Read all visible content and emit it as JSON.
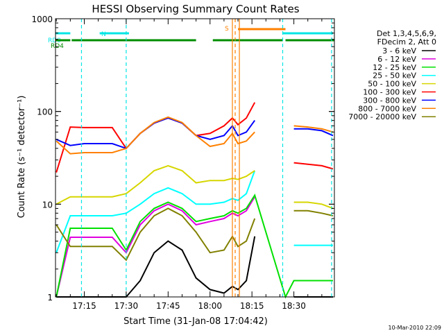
{
  "chart_data": {
    "type": "line",
    "title": "HESSI Observing Summary Count Rates",
    "xlabel": "Start Time (31-Jan-08 17:04:42)",
    "ylabel": "Count Rate (s⁻¹ detector⁻¹)",
    "y_scale": "log",
    "ylim": [
      1,
      1000
    ],
    "xlim": [
      "17:04:42",
      "18:44:30"
    ],
    "x_tick_labels": [
      "17:15",
      "17:30",
      "17:45",
      "18:00",
      "18:15",
      "18:30"
    ],
    "y_tick_labels": [
      "1",
      "10",
      "100",
      "1000"
    ],
    "legend_header": [
      "Det 1,3,4,5,6,9,",
      "FDecim 2, Att 0"
    ],
    "legend_position": "top-right",
    "footer_date": "10-Mar-2010 22:09",
    "flags": [
      {
        "label": "RD0",
        "color": "#00e5e5",
        "segments": [
          [
            "17:04:42",
            "17:10:00"
          ],
          [
            "17:20:30",
            "17:31:00"
          ],
          [
            "18:26:00",
            "18:44:00"
          ]
        ]
      },
      {
        "label": "RD4",
        "color": "#008c00",
        "segments": [
          [
            "17:04:42",
            "17:10:00"
          ],
          [
            "17:10:30",
            "17:30:30"
          ],
          [
            "17:30:00",
            "17:55:00"
          ],
          [
            "18:01:00",
            "18:26:00"
          ],
          [
            "18:27:00",
            "18:44:30"
          ]
        ]
      },
      {
        "label": "N",
        "color": "#00e5e5",
        "segments": []
      },
      {
        "label": "S",
        "color": "#ff8000",
        "segments": [
          [
            "18:10:00",
            "18:27:00"
          ]
        ]
      }
    ],
    "vlines": [
      {
        "time": "17:14:00",
        "color": "#00e5e5",
        "style": "dashed"
      },
      {
        "time": "17:30:00",
        "color": "#00e5e5",
        "style": "dashed"
      },
      {
        "time": "18:26:00",
        "color": "#00e5e5",
        "style": "dashed"
      },
      {
        "time": "18:43:30",
        "color": "#00e5e5",
        "style": "dashed"
      },
      {
        "time": "18:08:00",
        "color": "#ff8000",
        "style": "solid"
      },
      {
        "time": "18:09:00",
        "color": "#ff8000",
        "style": "dashed"
      },
      {
        "time": "18:10:30",
        "color": "#ff8000",
        "style": "solid"
      }
    ],
    "series": [
      {
        "name": "3 - 6 keV",
        "color": "#000000",
        "x": [
          "17:05",
          "17:10",
          "17:15",
          "17:20",
          "17:25",
          "17:30",
          "17:35",
          "17:40",
          "17:45",
          "17:50",
          "17:55",
          "18:00",
          "18:05",
          "18:08",
          "18:10",
          "18:13",
          "18:16",
          "18:27",
          "18:30",
          "18:35",
          "18:40",
          "18:44"
        ],
        "y": [
          1.0,
          1.0,
          1.0,
          1.0,
          1.0,
          1.0,
          1.5,
          3.0,
          4.0,
          3.2,
          1.6,
          1.2,
          1.1,
          1.3,
          1.2,
          1.5,
          4.5,
          null,
          1.0,
          1.0,
          1.0,
          1.0
        ]
      },
      {
        "name": "6 - 12 keV",
        "color": "#e000e0",
        "x": [
          "17:05",
          "17:10",
          "17:15",
          "17:20",
          "17:25",
          "17:30",
          "17:35",
          "17:40",
          "17:45",
          "17:50",
          "17:55",
          "18:00",
          "18:05",
          "18:08",
          "18:10",
          "18:13",
          "18:16",
          "18:27",
          "18:30",
          "18:35",
          "18:40",
          "18:44"
        ],
        "y": [
          1.0,
          4.4,
          4.4,
          4.4,
          4.4,
          3.0,
          6.0,
          8.5,
          10.0,
          8.5,
          6.0,
          6.5,
          7.0,
          8.0,
          7.5,
          8.5,
          12.0,
          null,
          null,
          null,
          null,
          null
        ]
      },
      {
        "name": "12 - 25 keV",
        "color": "#00e000",
        "x": [
          "17:05",
          "17:10",
          "17:15",
          "17:20",
          "17:25",
          "17:30",
          "17:35",
          "17:40",
          "17:45",
          "17:50",
          "17:55",
          "18:00",
          "18:05",
          "18:08",
          "18:10",
          "18:13",
          "18:16",
          "18:27",
          "18:30",
          "18:35",
          "18:40",
          "18:44"
        ],
        "y": [
          1.0,
          5.5,
          5.5,
          5.5,
          5.5,
          3.2,
          6.5,
          9.0,
          10.5,
          9.0,
          6.5,
          7.0,
          7.5,
          8.5,
          8.0,
          9.0,
          12.5,
          1.0,
          1.5,
          1.5,
          1.5,
          1.5
        ]
      },
      {
        "name": "25 - 50 keV",
        "color": "#00ffff",
        "x": [
          "17:05",
          "17:10",
          "17:15",
          "17:20",
          "17:25",
          "17:30",
          "17:35",
          "17:40",
          "17:45",
          "17:50",
          "17:55",
          "18:00",
          "18:05",
          "18:08",
          "18:10",
          "18:13",
          "18:16",
          "18:27",
          "18:30",
          "18:35",
          "18:40",
          "18:44"
        ],
        "y": [
          3.0,
          7.5,
          7.5,
          7.5,
          7.5,
          8.0,
          10.0,
          13.0,
          15.0,
          13.0,
          10.0,
          10.0,
          10.5,
          11.5,
          11.0,
          13.0,
          23.0,
          null,
          3.6,
          3.6,
          3.6,
          3.6
        ]
      },
      {
        "name": "50 - 100 keV",
        "color": "#d6d600",
        "x": [
          "17:05",
          "17:10",
          "17:15",
          "17:20",
          "17:25",
          "17:30",
          "17:35",
          "17:40",
          "17:45",
          "17:50",
          "17:55",
          "18:00",
          "18:05",
          "18:08",
          "18:10",
          "18:13",
          "18:16",
          "18:27",
          "18:30",
          "18:35",
          "18:40",
          "18:44"
        ],
        "y": [
          10.0,
          12.0,
          12.0,
          12.0,
          12.0,
          13.0,
          17.0,
          23.0,
          26.0,
          23.0,
          17.0,
          18.0,
          18.0,
          19.0,
          18.5,
          20.0,
          23.0,
          null,
          10.5,
          10.5,
          10.0,
          9.0
        ]
      },
      {
        "name": "100 - 300 keV",
        "color": "#ff0000",
        "x": [
          "17:05",
          "17:10",
          "17:15",
          "17:20",
          "17:25",
          "17:30",
          "17:35",
          "17:40",
          "17:45",
          "17:50",
          "17:55",
          "18:00",
          "18:05",
          "18:08",
          "18:10",
          "18:13",
          "18:16",
          "18:27",
          "18:30",
          "18:35",
          "18:40",
          "18:44"
        ],
        "y": [
          22.0,
          68.0,
          67.0,
          67.0,
          67.0,
          40.0,
          58.0,
          75.0,
          85.0,
          75.0,
          55.0,
          58.0,
          70.0,
          85.0,
          72.0,
          85.0,
          125.0,
          null,
          28.0,
          27.0,
          26.0,
          24.0
        ]
      },
      {
        "name": "300 - 800 keV",
        "color": "#0000ff",
        "x": [
          "17:05",
          "17:10",
          "17:15",
          "17:20",
          "17:25",
          "17:30",
          "17:35",
          "17:40",
          "17:45",
          "17:50",
          "17:55",
          "18:00",
          "18:05",
          "18:08",
          "18:10",
          "18:13",
          "18:16",
          "18:27",
          "18:30",
          "18:35",
          "18:40",
          "18:44"
        ],
        "y": [
          50.0,
          43.0,
          45.0,
          45.0,
          45.0,
          40.0,
          58.0,
          75.0,
          85.0,
          75.0,
          55.0,
          50.0,
          55.0,
          70.0,
          55.0,
          60.0,
          80.0,
          null,
          65.0,
          65.0,
          62.0,
          55.0
        ]
      },
      {
        "name": "800 - 7000 keV",
        "color": "#ff8000",
        "x": [
          "17:05",
          "17:10",
          "17:15",
          "17:20",
          "17:25",
          "17:30",
          "17:35",
          "17:40",
          "17:45",
          "17:50",
          "17:55",
          "18:00",
          "18:05",
          "18:08",
          "18:10",
          "18:13",
          "18:16",
          "18:27",
          "18:30",
          "18:35",
          "18:40",
          "18:44"
        ],
        "y": [
          48.0,
          35.0,
          36.0,
          36.0,
          36.0,
          40.0,
          58.0,
          76.0,
          87.0,
          76.0,
          55.0,
          42.0,
          45.0,
          58.0,
          45.0,
          48.0,
          60.0,
          null,
          70.0,
          68.0,
          65.0,
          60.0
        ]
      },
      {
        "name": "7000 - 20000 keV",
        "color": "#808000",
        "x": [
          "17:05",
          "17:10",
          "17:15",
          "17:20",
          "17:25",
          "17:30",
          "17:35",
          "17:40",
          "17:45",
          "17:50",
          "17:55",
          "18:00",
          "18:05",
          "18:08",
          "18:10",
          "18:13",
          "18:16",
          "18:27",
          "18:30",
          "18:35",
          "18:40",
          "18:44"
        ],
        "y": [
          6.0,
          3.5,
          3.5,
          3.5,
          3.5,
          2.5,
          5.0,
          7.5,
          9.0,
          7.5,
          5.0,
          3.0,
          3.2,
          4.5,
          3.5,
          4.0,
          7.0,
          null,
          8.5,
          8.5,
          8.0,
          7.5
        ]
      }
    ]
  }
}
